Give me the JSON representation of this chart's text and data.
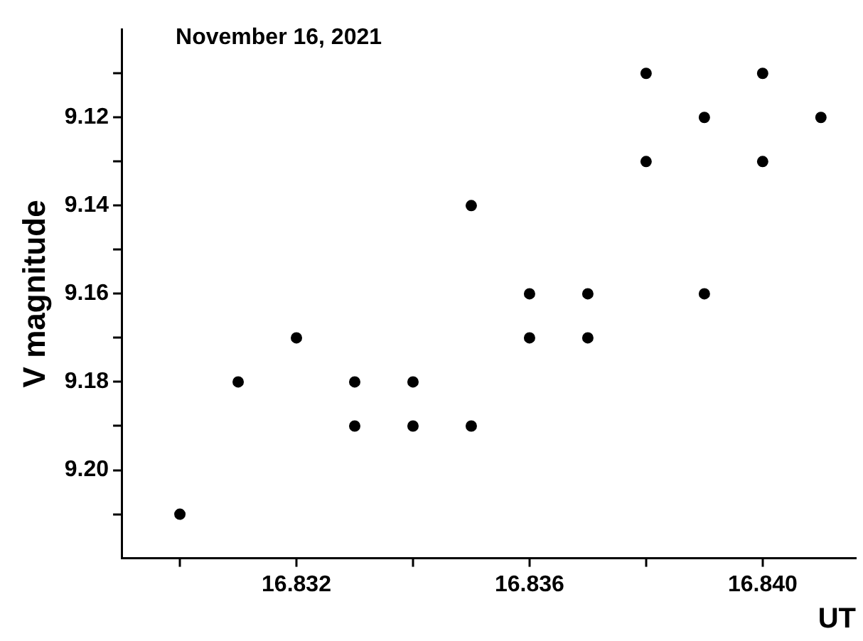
{
  "chart_data": {
    "type": "scatter",
    "title": "November 16, 2021",
    "xlabel": "UT",
    "ylabel": "V magnitude",
    "x": [
      16.83,
      16.831,
      16.832,
      16.833,
      16.833,
      16.834,
      16.834,
      16.835,
      16.835,
      16.836,
      16.836,
      16.837,
      16.837,
      16.838,
      16.838,
      16.839,
      16.839,
      16.84,
      16.84,
      16.841
    ],
    "series": [
      {
        "color": "#000000",
        "values": [
          9.21,
          9.18,
          9.17,
          9.18,
          9.19,
          9.18,
          9.19,
          9.14,
          9.19,
          9.16,
          9.17,
          9.16,
          9.17,
          9.11,
          9.13,
          9.12,
          9.16,
          9.11,
          9.13,
          9.12
        ]
      }
    ],
    "xlim": [
      16.829,
      16.8416
    ],
    "ylim": [
      9.22,
      9.1
    ],
    "xticks": [
      {
        "value": 16.83,
        "label": null
      },
      16.832,
      {
        "value": 16.834,
        "label": null
      },
      16.836,
      {
        "value": 16.838,
        "label": null
      },
      {
        "value": 16.84,
        "label": "16.840"
      }
    ],
    "yticks": [
      {
        "value": 9.11,
        "label": null
      },
      9.12,
      {
        "value": 9.13,
        "label": null
      },
      9.14,
      {
        "value": 9.15,
        "label": null
      },
      9.16,
      {
        "value": 9.17,
        "label": null
      },
      9.18,
      {
        "value": 9.19,
        "label": null
      },
      {
        "value": 9.2,
        "label": "9.20"
      },
      {
        "value": 9.21,
        "label": null
      }
    ],
    "marker": "circle",
    "grid": false,
    "legend": false
  }
}
